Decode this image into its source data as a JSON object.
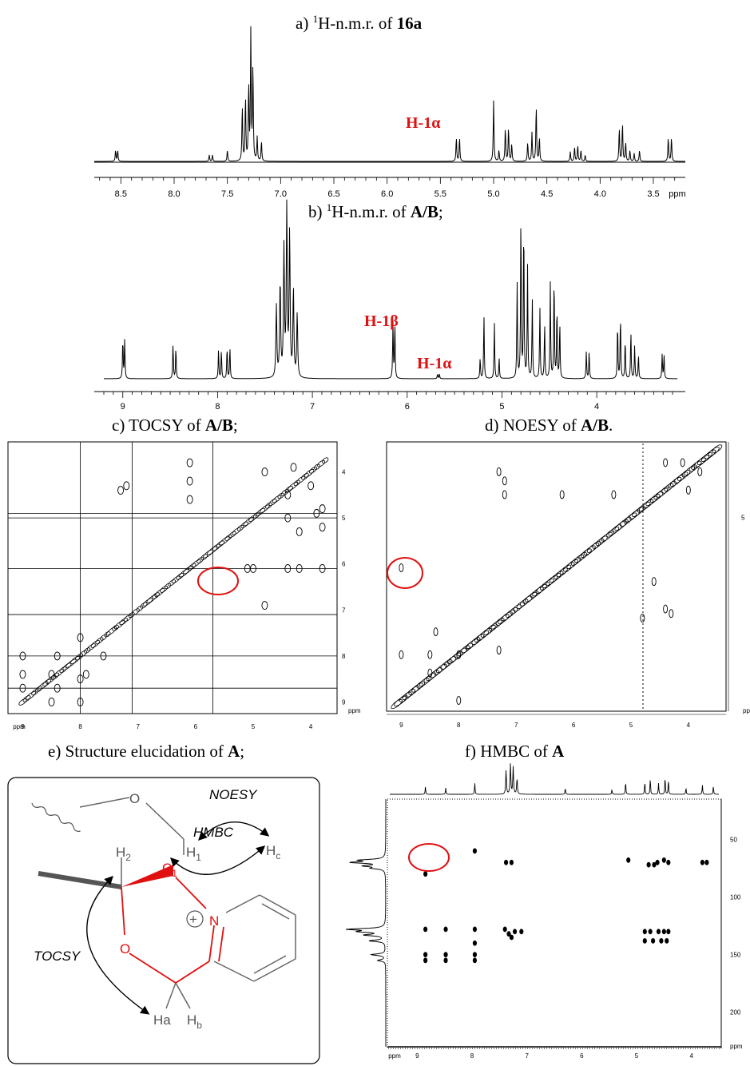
{
  "panels": {
    "a": {
      "prefix": "a) ",
      "sup": "1",
      "text": "H-n.m.r. of ",
      "bold": "16a",
      "suffix": ""
    },
    "b": {
      "prefix": "b) ",
      "sup": "1",
      "text": "H-n.m.r. of ",
      "bold": "A/B",
      "suffix": ";"
    },
    "c": {
      "prefix": "c) TOCSY of ",
      "bold": "A/B",
      "suffix": ";"
    },
    "d": {
      "prefix": "d) NOESY of ",
      "bold": "A/B",
      "suffix": "."
    },
    "e": {
      "prefix": "e) Structure elucidation of ",
      "bold": "A",
      "suffix": ";"
    },
    "f": {
      "prefix": "f) HMBC of ",
      "bold": "A",
      "suffix": ""
    }
  },
  "annotations": {
    "a_h1a": "H-1α",
    "b_h1b": "H-1β",
    "b_h1a": "H-1α"
  },
  "axis_a": {
    "ticks": [
      "8.5",
      "8.0",
      "7.5",
      "7.0",
      "6.5",
      "6.0",
      "5.5",
      "5.0",
      "4.5",
      "4.0",
      "3.5"
    ],
    "unit": "ppm"
  },
  "axis_b": {
    "ticks": [
      "9",
      "8",
      "7",
      "6",
      "5",
      "4"
    ]
  },
  "axis_c": {
    "x_ticks": [
      "9",
      "8",
      "7",
      "6",
      "5",
      "4"
    ],
    "y_ticks": [
      "4",
      "5",
      "6",
      "7",
      "8",
      "9"
    ],
    "unit": "ppm"
  },
  "axis_d": {
    "x_ticks": [
      "9",
      "8",
      "7",
      "6",
      "5",
      "4"
    ],
    "y_ticks": [
      "5"
    ],
    "unit": "ppm"
  },
  "axis_f": {
    "x_ticks": [
      "9",
      "8",
      "7",
      "6",
      "5",
      "4"
    ],
    "y_ticks": [
      "50",
      "100",
      "150",
      "200"
    ],
    "unit": "ppm"
  },
  "structure": {
    "noesy": "NOESY",
    "hmbc": "HMBC",
    "tocsy": "TOCSY",
    "o_top": "O",
    "o_ring": "O",
    "h2": "H",
    "h2_sub": "2",
    "h1": "H",
    "h1_sub": "1",
    "c1": "C",
    "c1_sub": "1",
    "hc": "H",
    "hc_sub": "c",
    "n": "N",
    "plus": "+",
    "ha": "Ha",
    "hb": "H",
    "hb_sub": "b"
  },
  "colors": {
    "highlight": "#e01010",
    "ring": "#e01010",
    "structure_grey": "#666666"
  }
}
